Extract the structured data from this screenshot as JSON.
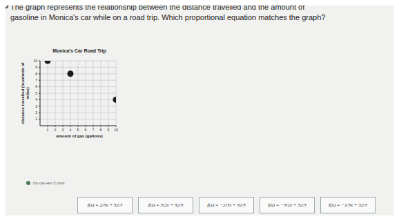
{
  "question": "The graph represents the relationship between the distance travelled and the amount of gasoline in Monica's car while on a road trip. Which proportional equation matches the graph?",
  "chart_data": {
    "type": "scatter",
    "title": "Monica's Car Road Trip",
    "x_label": "amount of gas (gallons)",
    "y_label": "distance travelled (hundreds of miles)",
    "x": [
      1,
      4,
      10
    ],
    "values": [
      10,
      8,
      4
    ],
    "color": "#1a1a1a",
    "xlim": [
      0,
      10
    ],
    "ylim": [
      0,
      10
    ],
    "xticks": [
      1,
      2,
      3,
      4,
      5,
      6,
      7,
      8,
      9,
      10
    ],
    "yticks": [
      1,
      2,
      3,
      4,
      5,
      6,
      7,
      8,
      9,
      10
    ],
    "grid": true
  },
  "note": "You can earn 5 coins",
  "choices": [
    "f(x) = 2/3x + 32/3",
    "f(x) = 3/2x + 32/3",
    "f(x) = −2/3x + 32/3",
    "f(x) = −3/2x + 32/3",
    "f(x) = −1/3x + 32/3"
  ]
}
